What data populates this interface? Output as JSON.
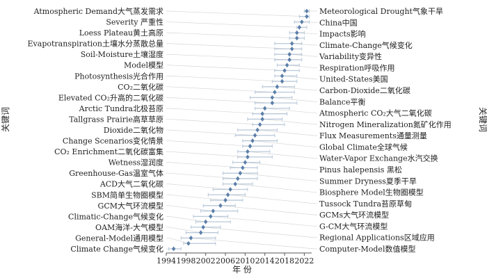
{
  "chart_data": {
    "type": "scatter",
    "xlabel": "年 份",
    "ylabel_left": "关键词",
    "ylabel_right": "关键词",
    "xlim": [
      1994,
      2023.5
    ],
    "xticks": [
      "1994",
      "1998",
      "2002",
      "2006",
      "2010",
      "2014",
      "2018",
      "2022"
    ],
    "colors": {
      "point": "#5b7fa8",
      "bar": "#b9c8d9",
      "guide": "#d6d6d6",
      "axis": "#555555"
    },
    "points": [
      {
        "label": "Meteorological Drought气象干旱",
        "side": "right",
        "x": 2022.5,
        "lo": 2022.0,
        "hi": 2023.0
      },
      {
        "label": "Atmospheric Demand大气蒸发需求",
        "side": "left",
        "x": 2022.5,
        "lo": 2021.0,
        "hi": 2023.0
      },
      {
        "label": "China中国",
        "side": "right",
        "x": 2021.5,
        "lo": 2020.0,
        "hi": 2023.0
      },
      {
        "label": "Severity 严重性",
        "side": "left",
        "x": 2021.0,
        "lo": 2020.5,
        "hi": 2022.5
      },
      {
        "label": "Impacts影响",
        "side": "right",
        "x": 2020.5,
        "lo": 2019.0,
        "hi": 2022.0
      },
      {
        "label": "Loess Plateau黄土高原",
        "side": "left",
        "x": 2020.5,
        "lo": 2019.0,
        "hi": 2022.0
      },
      {
        "label": "Climate-Change气候变化",
        "side": "right",
        "x": 2019.5,
        "lo": 2016.0,
        "hi": 2021.5
      },
      {
        "label": "Evapotranspiration土壤水分蒸散总量",
        "side": "left",
        "x": 2019.5,
        "lo": 2016.0,
        "hi": 2021.5
      },
      {
        "label": "Variability变异性",
        "side": "right",
        "x": 2019.0,
        "lo": 2016.0,
        "hi": 2021.5
      },
      {
        "label": "Soil-Moisture土壤湿度",
        "side": "left",
        "x": 2019.0,
        "lo": 2016.0,
        "hi": 2021.5
      },
      {
        "label": "Respiration呼吸作用",
        "side": "right",
        "x": 2018.5,
        "lo": 2016.5,
        "hi": 2021.0
      },
      {
        "label": "Model模型",
        "side": "left",
        "x": 2018.0,
        "lo": 2016.0,
        "hi": 2021.0
      },
      {
        "label": "United-States美国",
        "side": "right",
        "x": 2017.5,
        "lo": 2016.0,
        "hi": 2020.5
      },
      {
        "label": "Photosynthesis光合作用",
        "side": "left",
        "x": 2017.5,
        "lo": 2015.5,
        "hi": 2020.5
      },
      {
        "label": "Carbon-Dioxide二氧化碳",
        "side": "right",
        "x": 2016.5,
        "lo": 2013.5,
        "hi": 2020.0
      },
      {
        "label": "CO₂二氧化碳",
        "side": "left",
        "x": 2016.0,
        "lo": 2012.0,
        "hi": 2020.0
      },
      {
        "label": "Balance平衡",
        "side": "right",
        "x": 2015.5,
        "lo": 2011.0,
        "hi": 2019.5
      },
      {
        "label": "Elevated CO₂升高的二氧化碳",
        "side": "left",
        "x": 2015.5,
        "lo": 2012.0,
        "hi": 2020.5
      },
      {
        "label": "Atmospheric CO₂大气二氧化碳",
        "side": "right",
        "x": 2014.0,
        "lo": 2012.0,
        "hi": 2019.0
      },
      {
        "label": "Arctic Tundra北极苔原",
        "side": "left",
        "x": 2013.5,
        "lo": 2011.5,
        "hi": 2018.5
      },
      {
        "label": "Nitrogen Mineralization氮矿化作用",
        "side": "right",
        "x": 2013.5,
        "lo": 2010.5,
        "hi": 2017.5
      },
      {
        "label": "Tallgrass Prairie高草草原",
        "side": "left",
        "x": 2013.0,
        "lo": 2011.5,
        "hi": 2018.0
      },
      {
        "label": "Flux Measurements通量测量",
        "side": "right",
        "x": 2012.5,
        "lo": 2008.5,
        "hi": 2016.5
      },
      {
        "label": "Dioxide二氧化物",
        "side": "left",
        "x": 2012.0,
        "lo": 2008.0,
        "hi": 2016.0
      },
      {
        "label": "Global Climate全球气候",
        "side": "right",
        "x": 2011.5,
        "lo": 2009.5,
        "hi": 2016.5
      },
      {
        "label": "Change Scenarios变化情景",
        "side": "left",
        "x": 2011.0,
        "lo": 2009.5,
        "hi": 2015.5
      },
      {
        "label": "Water-Vapor Exchange水汽交换",
        "side": "right",
        "x": 2010.5,
        "lo": 2008.5,
        "hi": 2015.0
      },
      {
        "label": "CO₂ Enrichment二氧化碳富集",
        "side": "left",
        "x": 2010.5,
        "lo": 2008.5,
        "hi": 2015.5
      },
      {
        "label": "Pinus halepensis 黑松",
        "side": "right",
        "x": 2010.0,
        "lo": 2007.5,
        "hi": 2013.0
      },
      {
        "label": "Wetness湿润度",
        "side": "left",
        "x": 2009.5,
        "lo": 2007.0,
        "hi": 2012.5
      },
      {
        "label": "Summer Dryness夏季干旱",
        "side": "right",
        "x": 2009.0,
        "lo": 2005.5,
        "hi": 2012.5
      },
      {
        "label": "Greenhouse-Gas温室气体",
        "side": "left",
        "x": 2008.5,
        "lo": 2005.5,
        "hi": 2012.5
      },
      {
        "label": "Biosphere Model生物圈模型",
        "side": "right",
        "x": 2008.0,
        "lo": 2005.5,
        "hi": 2011.5
      },
      {
        "label": "ACD大气二氧化碳",
        "side": "left",
        "x": 2007.0,
        "lo": 2003.5,
        "hi": 2010.5
      },
      {
        "label": "Tussock Tundra苔原草甸",
        "side": "right",
        "x": 2006.5,
        "lo": 2002.5,
        "hi": 2010.0
      },
      {
        "label": "SBM简单生物圈模型",
        "side": "left",
        "x": 2006.0,
        "lo": 2003.0,
        "hi": 2009.5
      },
      {
        "label": "GCMs大气环流模型",
        "side": "right",
        "x": 2005.0,
        "lo": 2001.5,
        "hi": 2008.0
      },
      {
        "label": "GCM大气环流模型",
        "side": "left",
        "x": 2003.5,
        "lo": 2001.0,
        "hi": 2008.5
      },
      {
        "label": "G-CM大气环流模型",
        "side": "right",
        "x": 2003.0,
        "lo": 1999.5,
        "hi": 2006.5
      },
      {
        "label": "Climatic-Change气候变化",
        "side": "left",
        "x": 2002.0,
        "lo": 2000.0,
        "hi": 2007.0
      },
      {
        "label": "Regional Applications区域应用",
        "side": "right",
        "x": 2001.5,
        "lo": 1999.0,
        "hi": 2005.0
      },
      {
        "label": "OAM海洋-大气模型",
        "side": "left",
        "x": 2001.0,
        "lo": 1998.0,
        "hi": 2004.5
      },
      {
        "label": "Computer-Model数值模型",
        "side": "right",
        "x": 1999.0,
        "lo": 1997.0,
        "hi": 2004.0
      },
      {
        "label": "General-Model通用模型",
        "side": "left",
        "x": 1998.5,
        "lo": 1997.5,
        "hi": 2004.0
      },
      {
        "label": "Climate Change气候变化",
        "side": "left",
        "x": 1995.5,
        "lo": 1994.5,
        "hi": 1997.0
      }
    ]
  }
}
